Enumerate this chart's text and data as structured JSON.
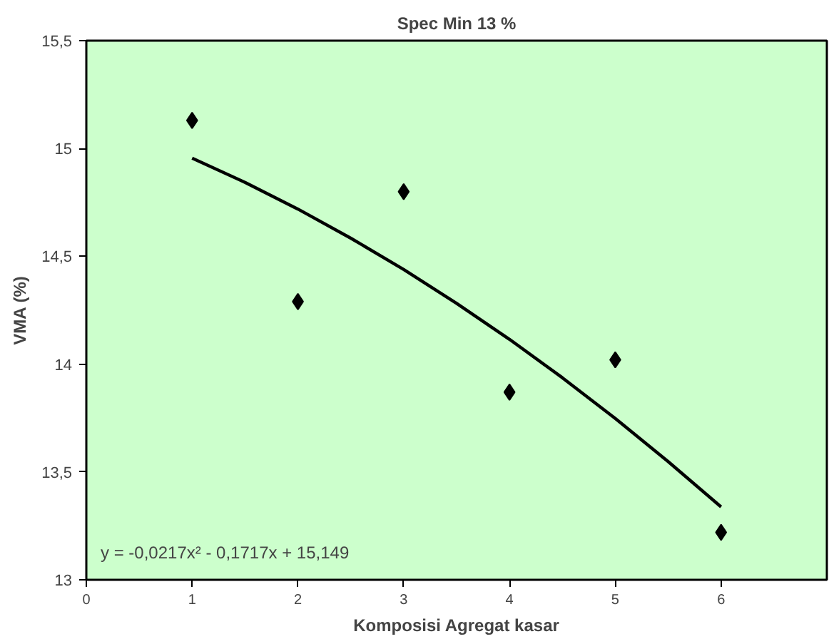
{
  "chart_data": {
    "type": "scatter",
    "title": "Spec Min 13 %",
    "xlabel": "Komposisi Agregat kasar",
    "ylabel": "VMA (%)",
    "xlim": [
      0,
      7
    ],
    "xticks": [
      0,
      1,
      2,
      3,
      4,
      5,
      6
    ],
    "ylim": [
      13,
      15.5
    ],
    "yticks": [
      {
        "value": 13,
        "label": "13"
      },
      {
        "value": 13.5,
        "label": "13,5"
      },
      {
        "value": 14,
        "label": "14"
      },
      {
        "value": 14.5,
        "label": "14,5"
      },
      {
        "value": 15,
        "label": "15"
      },
      {
        "value": 15.5,
        "label": "15,5"
      }
    ],
    "grid": false,
    "series": [
      {
        "color": "#000000",
        "marker": "diamond",
        "x": [
          1,
          2,
          3,
          4,
          5,
          6
        ],
        "values": [
          15.13,
          14.29,
          14.8,
          13.87,
          14.02,
          13.22
        ]
      },
      {
        "type": "line",
        "color": "#000000",
        "line_style": "solid",
        "x": [
          1,
          1.5,
          2,
          2.5,
          3,
          3.5,
          4,
          4.5,
          5,
          5.5,
          6
        ],
        "values": [
          14.955,
          14.843,
          14.719,
          14.584,
          14.439,
          14.282,
          14.115,
          13.937,
          13.748,
          13.548,
          13.338
        ]
      }
    ],
    "annotations": [
      "y = -0,0217x² - 0,1717x + 15,149"
    ]
  }
}
